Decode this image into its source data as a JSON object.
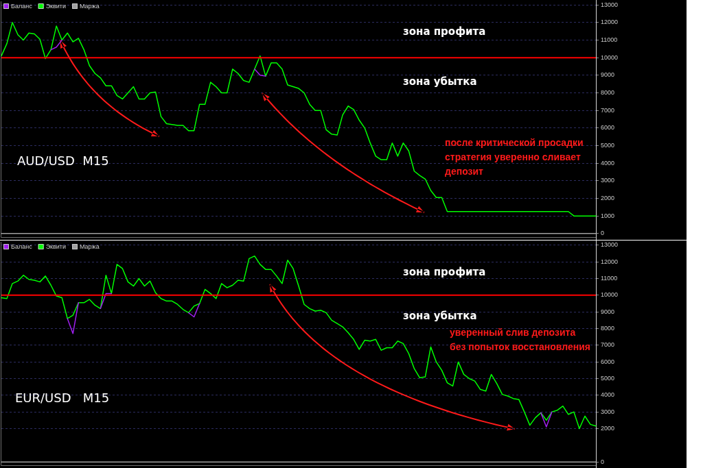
{
  "chart_data": [
    {
      "type": "line",
      "title": "AUD/USD  M15",
      "annotations": [
        "зона профита",
        "зона убытка",
        "после критической просадки\nстратегия уверенно сливает\nдепозит"
      ],
      "categories": [
        null,
        null,
        null,
        null,
        null,
        null,
        null,
        null,
        null,
        null,
        null,
        null,
        null,
        null,
        null,
        null,
        null,
        null,
        null,
        null,
        null,
        null,
        null,
        null,
        null,
        null,
        null,
        null,
        null,
        null,
        null,
        null,
        null,
        null,
        null,
        null,
        null,
        null,
        null,
        null,
        null,
        null,
        null,
        null,
        null,
        null,
        null,
        null,
        null,
        null,
        null,
        null,
        null,
        null,
        null,
        null,
        null,
        null,
        null,
        null,
        null,
        null,
        null,
        null,
        null,
        null,
        null,
        null,
        null,
        null,
        null,
        null,
        null,
        null,
        null,
        null,
        null,
        null,
        null,
        null,
        null,
        null,
        null,
        null,
        null,
        null,
        null,
        null,
        null,
        null,
        null,
        null,
        null,
        null,
        null,
        null,
        null,
        null,
        null,
        null,
        null,
        null,
        null,
        null,
        null,
        null,
        null,
        null,
        null
      ],
      "series": [
        {
          "name": "Баланс",
          "color": "#a020f0",
          "values": [
            null,
            null,
            null,
            null,
            null,
            null,
            null,
            null,
            null,
            10450,
            10600,
            11000,
            null,
            null,
            null,
            null,
            null,
            null,
            null,
            null,
            null,
            null,
            null,
            null,
            null,
            null,
            null,
            null,
            null,
            null,
            null,
            null,
            null,
            null,
            null,
            null,
            null,
            null,
            null,
            null,
            null,
            null,
            null,
            null,
            null,
            null,
            9350,
            9000,
            8950,
            null,
            null,
            null,
            null,
            null,
            null,
            null,
            null,
            null,
            null,
            null,
            null,
            null,
            null,
            null,
            null,
            null,
            null,
            null,
            null,
            null,
            null,
            null,
            null,
            null,
            null,
            null,
            null,
            null,
            null,
            null,
            null,
            null,
            null,
            null,
            null,
            null,
            null,
            null,
            null,
            null,
            null,
            null,
            null,
            null,
            null,
            null,
            null,
            null,
            null,
            null,
            null,
            null,
            null,
            null,
            null,
            null,
            null,
            null,
            null
          ]
        },
        {
          "name": "Эквити",
          "color": "#00ff00",
          "values": [
            10100,
            10800,
            12000,
            11300,
            11000,
            11400,
            11350,
            11050,
            9950,
            10450,
            11800,
            11000,
            11400,
            10900,
            11100,
            10450,
            9550,
            9100,
            8850,
            8400,
            8400,
            7850,
            7650,
            8000,
            8350,
            7650,
            7650,
            8000,
            8050,
            6650,
            6250,
            6200,
            6150,
            6150,
            5850,
            5850,
            7350,
            7350,
            8600,
            8350,
            8000,
            8000,
            9350,
            9100,
            8700,
            8600,
            9350,
            10100,
            8950,
            9700,
            9700,
            9350,
            8450,
            8350,
            8250,
            8000,
            7350,
            7000,
            7000,
            5900,
            5650,
            5600,
            6750,
            7250,
            7050,
            6450,
            6000,
            5150,
            4400,
            4200,
            4200,
            5150,
            4400,
            5150,
            4700,
            3550,
            3300,
            3100,
            2450,
            2050,
            2050,
            1250,
            1250,
            1250,
            1250,
            1250,
            1250,
            1250,
            1250,
            1250,
            1250,
            1250,
            1250,
            1250,
            1250,
            1250,
            1250,
            1250,
            1250,
            1250,
            1250,
            1250,
            1250,
            1250,
            1000,
            1000,
            1000,
            1000,
            1000
          ]
        },
        {
          "name": "Маржа",
          "color": "#a0a0a0",
          "values": [
            0,
            0,
            0,
            0,
            0,
            0,
            0,
            0,
            0,
            0,
            0,
            0,
            0,
            0,
            0,
            0,
            0,
            0,
            0,
            0,
            0,
            0,
            0,
            0,
            0,
            0,
            0,
            0,
            0,
            0,
            0,
            0,
            0,
            0,
            0,
            0,
            0,
            0,
            0,
            0,
            0,
            0,
            0,
            0,
            0,
            0,
            0,
            0,
            0,
            0,
            0,
            0,
            0,
            0,
            0,
            0,
            0,
            0,
            0,
            0,
            0,
            0,
            0,
            0,
            0,
            0,
            0,
            0,
            0,
            0,
            0,
            0,
            0,
            0,
            0,
            0,
            0,
            0,
            0,
            0,
            0,
            0,
            0,
            0,
            0,
            0,
            0,
            0,
            0,
            0,
            0,
            0,
            0,
            0,
            0,
            0,
            0,
            0,
            0,
            0,
            0,
            0,
            0,
            0,
            0,
            0,
            0,
            0,
            0
          ]
        }
      ],
      "ylim": [
        -200,
        13200
      ],
      "yticks": [
        0,
        1000,
        2000,
        3000,
        4000,
        5000,
        6000,
        7000,
        8000,
        9000,
        10000,
        11000,
        12000,
        13000
      ],
      "ref_lines": [
        {
          "axis": "y",
          "value": 10000,
          "color": "#ff0000"
        }
      ],
      "grid": "y",
      "legend": "top left",
      "tick_labels": "y",
      "marker": "none"
    },
    {
      "type": "line",
      "title": "EUR/USD   M15",
      "annotations": [
        "зона профита",
        "зона убытка",
        "уверенный слив депозита\nбез попыток восстановления"
      ],
      "categories": [
        null,
        null,
        null,
        null,
        null,
        null,
        null,
        null,
        null,
        null,
        null,
        null,
        null,
        null,
        null,
        null,
        null,
        null,
        null,
        null,
        null,
        null,
        null,
        null,
        null,
        null,
        null,
        null,
        null,
        null,
        null,
        null,
        null,
        null,
        null,
        null,
        null,
        null,
        null,
        null,
        null,
        null,
        null,
        null,
        null,
        null,
        null,
        null,
        null,
        null,
        null,
        null,
        null,
        null,
        null,
        null,
        null,
        null,
        null,
        null,
        null,
        null,
        null,
        null,
        null,
        null,
        null,
        null,
        null,
        null,
        null,
        null,
        null,
        null,
        null,
        null,
        null,
        null,
        null,
        null,
        null,
        null,
        null,
        null,
        null,
        null,
        null,
        null,
        null,
        null,
        null,
        null,
        null,
        null,
        null,
        null,
        null,
        null,
        null,
        null,
        null,
        null,
        null,
        null,
        null,
        null,
        null,
        null,
        null
      ],
      "series": [
        {
          "name": "Баланс",
          "color": "#a020f0",
          "values": [
            null,
            null,
            null,
            null,
            null,
            null,
            null,
            null,
            null,
            null,
            null,
            null,
            8600,
            7700,
            9550,
            null,
            null,
            null,
            9200,
            10100,
            10100,
            null,
            null,
            null,
            null,
            null,
            null,
            null,
            null,
            null,
            null,
            null,
            null,
            null,
            8950,
            8700,
            9500,
            null,
            null,
            null,
            null,
            null,
            null,
            null,
            null,
            null,
            null,
            null,
            null,
            null,
            null,
            null,
            null,
            null,
            null,
            null,
            null,
            null,
            null,
            null,
            null,
            null,
            null,
            null,
            null,
            null,
            null,
            null,
            null,
            null,
            null,
            null,
            null,
            null,
            null,
            null,
            null,
            null,
            null,
            null,
            null,
            null,
            null,
            null,
            null,
            null,
            null,
            null,
            null,
            null,
            null,
            null,
            null,
            null,
            null,
            null,
            null,
            null,
            2950,
            2100,
            3000,
            null,
            null,
            null,
            null,
            null,
            null,
            null,
            null
          ]
        },
        {
          "name": "Эквити",
          "color": "#00ff00",
          "values": [
            9850,
            9800,
            10700,
            10850,
            11200,
            10950,
            10900,
            10800,
            11150,
            10600,
            9950,
            9850,
            8600,
            8800,
            9550,
            9550,
            9750,
            9400,
            9200,
            11200,
            10100,
            11850,
            11600,
            10800,
            10550,
            11000,
            10550,
            10850,
            10150,
            9800,
            9650,
            9650,
            9450,
            9150,
            8950,
            9350,
            9500,
            10350,
            10100,
            9800,
            10700,
            10450,
            10600,
            10900,
            10850,
            12200,
            12350,
            11850,
            11550,
            11550,
            11150,
            10700,
            12100,
            11600,
            10550,
            9450,
            9200,
            9050,
            9100,
            8950,
            8500,
            8300,
            8100,
            7750,
            7350,
            6750,
            7300,
            7250,
            7350,
            6700,
            6850,
            6850,
            7250,
            7100,
            6500,
            5600,
            5050,
            5100,
            6900,
            6000,
            5500,
            4750,
            4550,
            6000,
            5250,
            5000,
            4850,
            4350,
            4250,
            5250,
            4700,
            4050,
            3950,
            3800,
            3750,
            3000,
            2200,
            2650,
            2950,
            2500,
            3000,
            3100,
            3350,
            2850,
            3000,
            2000,
            2750,
            2250,
            2150
          ]
        },
        {
          "name": "Маржа",
          "color": "#a0a0a0",
          "values": [
            0,
            0,
            0,
            0,
            0,
            0,
            0,
            0,
            0,
            0,
            0,
            0,
            0,
            0,
            0,
            0,
            0,
            0,
            0,
            0,
            0,
            0,
            0,
            0,
            0,
            0,
            0,
            0,
            0,
            0,
            0,
            0,
            0,
            0,
            0,
            0,
            0,
            0,
            0,
            0,
            0,
            0,
            0,
            0,
            0,
            0,
            0,
            0,
            0,
            0,
            0,
            0,
            0,
            0,
            0,
            0,
            0,
            0,
            0,
            0,
            0,
            0,
            0,
            0,
            0,
            0,
            0,
            0,
            0,
            0,
            0,
            0,
            0,
            0,
            0,
            0,
            0,
            0,
            0,
            0,
            0,
            0,
            0,
            0,
            0,
            0,
            0,
            0,
            0,
            0,
            0,
            0,
            0,
            0,
            0,
            0,
            0,
            0,
            0,
            0,
            0,
            0,
            0,
            0,
            0,
            0,
            0,
            0,
            0
          ]
        }
      ],
      "ylim": [
        -200,
        13200
      ],
      "yticks": [
        0,
        2000,
        3000,
        4000,
        5000,
        6000,
        7000,
        8000,
        9000,
        10000,
        11000,
        12000,
        13000
      ],
      "ref_lines": [
        {
          "axis": "y",
          "value": 10000,
          "color": "#ff0000"
        }
      ],
      "grid": "y",
      "legend": "top left",
      "tick_labels": "y",
      "marker": "none"
    }
  ]
}
